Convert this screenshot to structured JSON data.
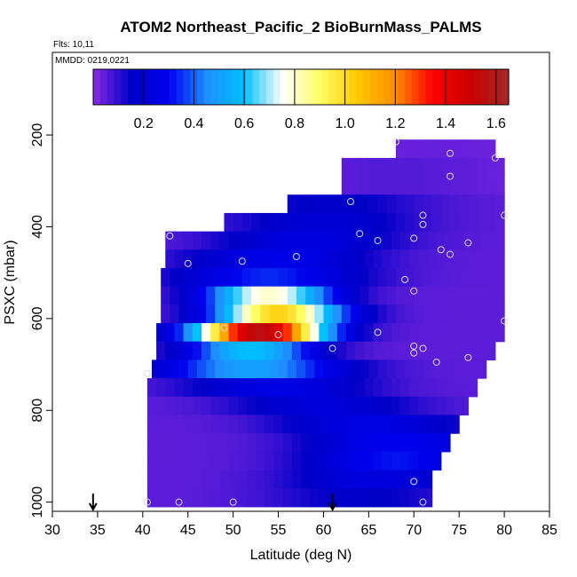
{
  "chart_data": {
    "type": "heatmap",
    "title": "ATOM2 Northeast_Pacific_2 BioBurnMass_PALMS",
    "annotations": [
      "Flts: 10,11",
      "MMDD: 0219,0221"
    ],
    "xlabel": "Latitude (deg N)",
    "ylabel": "PSXC (mbar)",
    "xlim": [
      30,
      85
    ],
    "ylim": [
      1020,
      20
    ],
    "y_reversed": true,
    "x_ticks": [
      30,
      35,
      40,
      45,
      50,
      55,
      60,
      65,
      70,
      75,
      80,
      85
    ],
    "y_ticks": [
      200,
      400,
      600,
      800,
      1000
    ],
    "colorbar": {
      "min": 0,
      "max": 1.65,
      "ticks": [
        0.2,
        0.4,
        0.6,
        0.8,
        1.0,
        1.2,
        1.4,
        1.6
      ],
      "tick_labels": [
        "0.2",
        "0.4",
        "0.6",
        "0.8",
        "1.0",
        "1.2",
        "1.4",
        "1.6"
      ],
      "colors": [
        "#8a2be2",
        "#0000c8",
        "#0000ee",
        "#1e90ff",
        "#00bfff",
        "#ffffff",
        "#ffff66",
        "#ffc800",
        "#ff8c00",
        "#ff0000",
        "#c80000",
        "#a52a2a"
      ]
    },
    "bands": [
      {
        "p": 230,
        "lat0": 68,
        "lat1": 79,
        "low": 0.02,
        "peak": 0.04,
        "peak_lat": 72
      },
      {
        "p": 270,
        "lat0": 62,
        "lat1": 80,
        "low": 0.03,
        "peak": 0.06,
        "peak_lat": 68
      },
      {
        "p": 310,
        "lat0": 62,
        "lat1": 80,
        "low": 0.03,
        "peak": 0.06,
        "peak_lat": 68
      },
      {
        "p": 350,
        "lat0": 56,
        "lat1": 80,
        "low": 0.05,
        "peak": 0.16,
        "peak_lat": 61
      },
      {
        "p": 390,
        "lat0": 49,
        "lat1": 80,
        "low": 0.05,
        "peak": 0.2,
        "peak_lat": 60
      },
      {
        "p": 430,
        "lat0": 42.5,
        "lat1": 80,
        "low": 0.05,
        "peak": 0.24,
        "peak_lat": 58
      },
      {
        "p": 470,
        "lat0": 42.5,
        "lat1": 80,
        "low": 0.05,
        "peak": 0.28,
        "peak_lat": 55
      },
      {
        "p": 510,
        "lat0": 42,
        "lat1": 80,
        "low": 0.05,
        "peak": 0.34,
        "peak_lat": 54
      },
      {
        "p": 550,
        "lat0": 42,
        "lat1": 80,
        "low": 0.05,
        "peak": 0.8,
        "peak_lat": 54
      },
      {
        "p": 590,
        "lat0": 42,
        "lat1": 80,
        "low": 0.05,
        "peak": 1.02,
        "peak_lat": 55
      },
      {
        "p": 630,
        "lat0": 41.5,
        "lat1": 80,
        "low": 0.05,
        "peak": 1.55,
        "peak_lat": 53
      },
      {
        "p": 670,
        "lat0": 41.5,
        "lat1": 79,
        "low": 0.05,
        "peak": 0.6,
        "peak_lat": 52
      },
      {
        "p": 710,
        "lat0": 41,
        "lat1": 78,
        "low": 0.05,
        "peak": 0.5,
        "peak_lat": 52
      },
      {
        "p": 750,
        "lat0": 40.5,
        "lat1": 77,
        "low": 0.05,
        "peak": 0.26,
        "peak_lat": 55
      },
      {
        "p": 790,
        "lat0": 40.5,
        "lat1": 76,
        "low": 0.05,
        "peak": 0.22,
        "peak_lat": 60
      },
      {
        "p": 830,
        "lat0": 40.5,
        "lat1": 75,
        "low": 0.05,
        "peak": 0.26,
        "peak_lat": 65
      },
      {
        "p": 870,
        "lat0": 40.5,
        "lat1": 74,
        "low": 0.05,
        "peak": 0.3,
        "peak_lat": 68
      },
      {
        "p": 910,
        "lat0": 40.5,
        "lat1": 73,
        "low": 0.05,
        "peak": 0.32,
        "peak_lat": 68
      },
      {
        "p": 950,
        "lat0": 40.5,
        "lat1": 72,
        "low": 0.05,
        "peak": 0.24,
        "peak_lat": 66
      },
      {
        "p": 990,
        "lat0": 40.5,
        "lat1": 72,
        "low": 0.05,
        "peak": 0.16,
        "peak_lat": 64
      }
    ],
    "points": [
      {
        "lat": 68,
        "p": 215
      },
      {
        "lat": 74,
        "p": 240
      },
      {
        "lat": 79,
        "p": 250
      },
      {
        "lat": 74,
        "p": 290
      },
      {
        "lat": 63,
        "p": 345
      },
      {
        "lat": 71,
        "p": 375
      },
      {
        "lat": 80,
        "p": 375
      },
      {
        "lat": 71,
        "p": 395
      },
      {
        "lat": 43,
        "p": 420
      },
      {
        "lat": 64,
        "p": 415
      },
      {
        "lat": 70,
        "p": 425
      },
      {
        "lat": 66,
        "p": 430
      },
      {
        "lat": 76,
        "p": 435
      },
      {
        "lat": 73,
        "p": 450
      },
      {
        "lat": 74,
        "p": 460
      },
      {
        "lat": 57,
        "p": 465
      },
      {
        "lat": 51,
        "p": 475
      },
      {
        "lat": 45,
        "p": 480
      },
      {
        "lat": 69,
        "p": 515
      },
      {
        "lat": 70,
        "p": 540
      },
      {
        "lat": 80,
        "p": 605
      },
      {
        "lat": 49,
        "p": 620
      },
      {
        "lat": 66,
        "p": 630
      },
      {
        "lat": 55,
        "p": 635
      },
      {
        "lat": 61,
        "p": 665
      },
      {
        "lat": 70,
        "p": 660
      },
      {
        "lat": 71,
        "p": 665
      },
      {
        "lat": 70,
        "p": 675
      },
      {
        "lat": 76,
        "p": 685
      },
      {
        "lat": 72.5,
        "p": 695
      },
      {
        "lat": 40.5,
        "p": 720
      },
      {
        "lat": 70,
        "p": 955
      },
      {
        "lat": 40.5,
        "p": 1000
      },
      {
        "lat": 44,
        "p": 1000
      },
      {
        "lat": 50,
        "p": 1000
      },
      {
        "lat": 71,
        "p": 1000
      }
    ],
    "arrows_lat": [
      34.5,
      61
    ]
  }
}
